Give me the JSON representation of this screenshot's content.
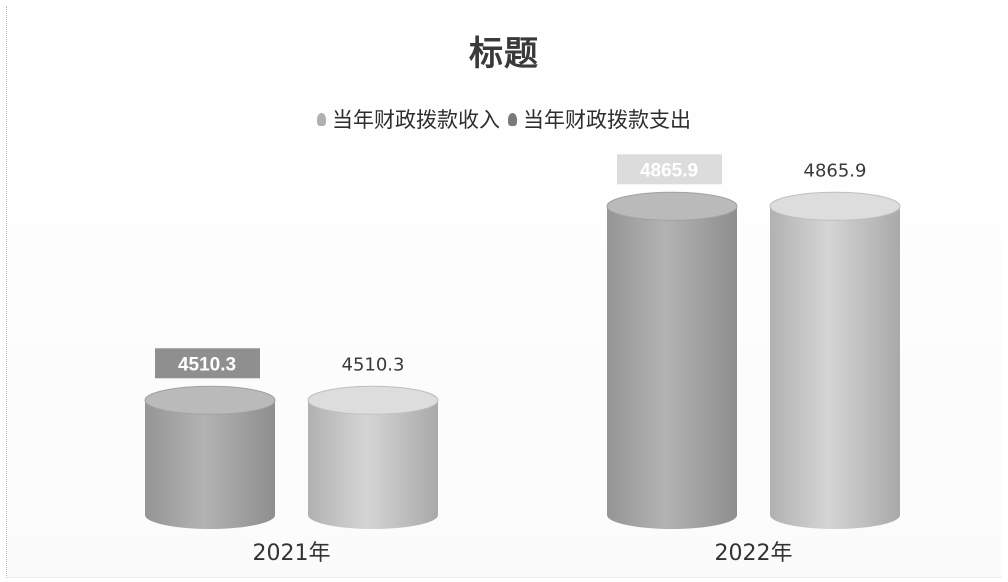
{
  "chart_data": {
    "type": "bar",
    "style": "3d-cylinder",
    "title": "标题",
    "categories": [
      "2021年",
      "2022年"
    ],
    "series": [
      {
        "name": "当年财政拨款收入",
        "values": [
          4510.3,
          4865.9
        ],
        "color": "#a9a9a9",
        "label_style": "boxed"
      },
      {
        "name": "当年财政拨款支出",
        "values": [
          4510.3,
          4865.9
        ],
        "color": "#c9c9c9",
        "label_style": "plain"
      }
    ],
    "data_labels": {
      "s0": [
        "4510.3",
        "4865.9"
      ],
      "s1": [
        "4510.3",
        "4865.9"
      ]
    },
    "legend_position": "top",
    "grid": false
  }
}
